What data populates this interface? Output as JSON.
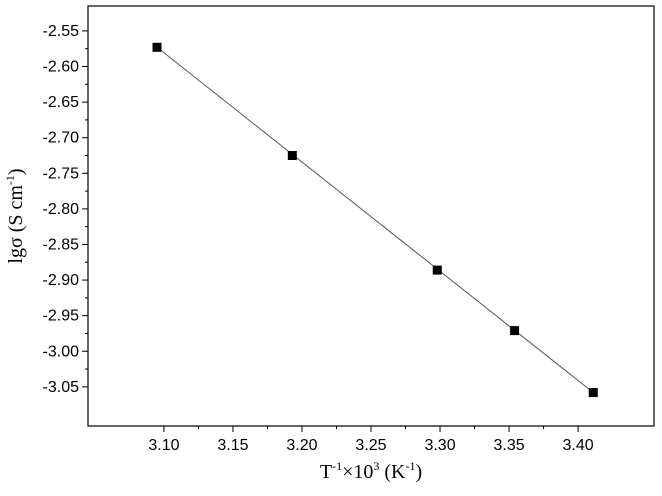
{
  "chart_data": {
    "type": "scatter",
    "xlabel": {
      "base": "T",
      "sup1": "-1",
      "mid": "×10",
      "sup2": "3",
      "unit_open": " (K",
      "sup3": "-1",
      "unit_close": ")"
    },
    "ylabel": {
      "base": "lgσ (S cm",
      "sup": "-1",
      "close": ")"
    },
    "xlim": [
      3.045,
      3.455
    ],
    "ylim": [
      -3.105,
      -2.515
    ],
    "x_ticks": [
      "3.10",
      "3.15",
      "3.20",
      "3.25",
      "3.30",
      "3.35",
      "3.40"
    ],
    "y_ticks": [
      "-2.55",
      "-2.60",
      "-2.65",
      "-2.70",
      "-2.75",
      "-2.80",
      "-2.85",
      "-2.90",
      "-2.95",
      "-3.00",
      "-3.05"
    ],
    "series": [
      {
        "x": [
          3.095,
          3.193,
          3.298,
          3.354,
          3.411
        ],
        "y": [
          -2.573,
          -2.725,
          -2.886,
          -2.971,
          -3.058
        ]
      }
    ],
    "fit_line": {
      "x": [
        3.095,
        3.411
      ],
      "y": [
        -2.573,
        -3.058
      ]
    },
    "grid": false,
    "legend": "none",
    "colors": {
      "marker": "#000000",
      "line": "#555555",
      "axis": "#000000"
    }
  }
}
